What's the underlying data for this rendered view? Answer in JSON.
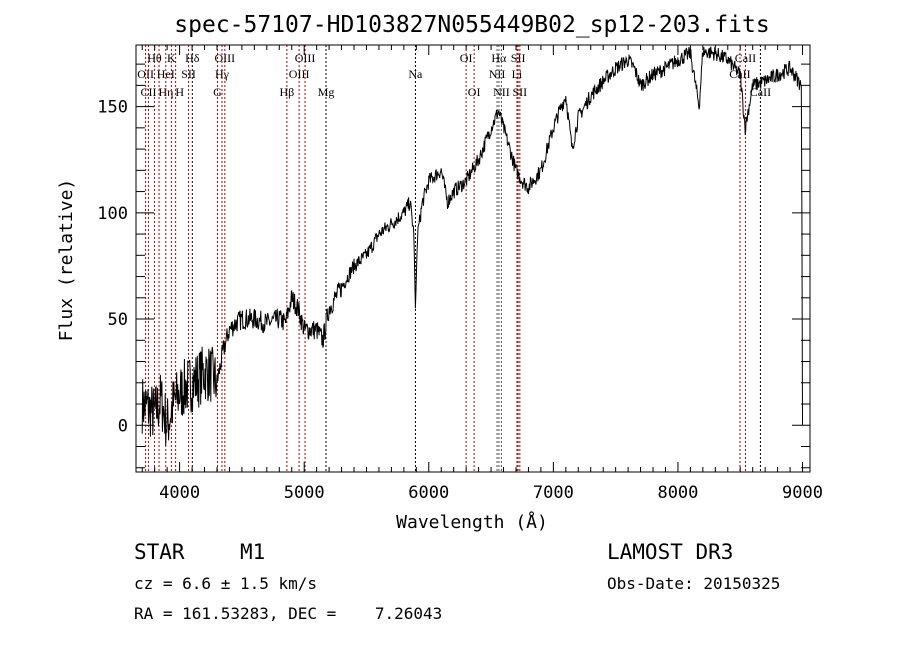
{
  "chart_data": {
    "type": "line",
    "title": "spec-57107-HD103827N055449B02_sp12-203.fits",
    "xlabel": "Wavelength (Å)",
    "ylabel": "Flux (relative)",
    "xlim": [
      3650,
      9060
    ],
    "ylim": [
      -22,
      179
    ],
    "xticks": [
      4000,
      5000,
      6000,
      7000,
      8000,
      9000
    ],
    "yticks": [
      0,
      50,
      100,
      150
    ],
    "grid": false,
    "series": [
      {
        "name": "spectrum",
        "x": [
          3700,
          3750,
          3800,
          3850,
          3900,
          3950,
          4000,
          4050,
          4100,
          4150,
          4200,
          4250,
          4300,
          4350,
          4400,
          4450,
          4500,
          4600,
          4700,
          4800,
          4850,
          4900,
          4950,
          5000,
          5100,
          5150,
          5200,
          5300,
          5400,
          5500,
          5600,
          5700,
          5800,
          5850,
          5880,
          5893,
          5910,
          5950,
          6000,
          6100,
          6150,
          6200,
          6300,
          6400,
          6500,
          6560,
          6600,
          6650,
          6700,
          6750,
          6800,
          6900,
          7000,
          7050,
          7100,
          7150,
          7200,
          7300,
          7400,
          7500,
          7600,
          7650,
          7700,
          7800,
          7900,
          8000,
          8100,
          8170,
          8200,
          8300,
          8400,
          8500,
          8540,
          8600,
          8700,
          8800,
          8900,
          8990,
          8995,
          9000
        ],
        "y": [
          10,
          8,
          5,
          12,
          0,
          10,
          15,
          18,
          20,
          22,
          25,
          24,
          20,
          35,
          45,
          48,
          50,
          50,
          48,
          50,
          48,
          60,
          55,
          45,
          45,
          40,
          55,
          65,
          75,
          80,
          90,
          95,
          100,
          105,
          90,
          55,
          90,
          105,
          115,
          120,
          105,
          110,
          115,
          125,
          140,
          148,
          140,
          130,
          120,
          115,
          112,
          120,
          140,
          148,
          155,
          130,
          145,
          155,
          162,
          168,
          172,
          168,
          160,
          165,
          168,
          172,
          175,
          150,
          176,
          175,
          172,
          165,
          140,
          160,
          162,
          165,
          168,
          160,
          100,
          0
        ]
      }
    ],
    "line_markers": [
      {
        "label": "OII",
        "wl": 3727,
        "row": 2,
        "color": "#b00000"
      },
      {
        "label": "Hθ",
        "wl": 3798,
        "row": 1,
        "color": "#b00000"
      },
      {
        "label": "CII",
        "wl": 3750,
        "row": 3,
        "color": "#b00000"
      },
      {
        "label": "Hη",
        "wl": 3835,
        "row": 3,
        "color": "#b00000"
      },
      {
        "label": "HeI",
        "wl": 3889,
        "row": 2,
        "color": "#b00000"
      },
      {
        "label": "K",
        "wl": 3934,
        "row": 1,
        "color": "#b00000"
      },
      {
        "label": "H",
        "wl": 3968,
        "row": 3,
        "color": "#b00000"
      },
      {
        "label": "SII",
        "wl": 4072,
        "row": 2,
        "color": "#b00000"
      },
      {
        "label": "Hδ",
        "wl": 4102,
        "row": 1,
        "color": "#000000"
      },
      {
        "label": "G",
        "wl": 4304,
        "row": 3,
        "color": "#b00000"
      },
      {
        "label": "Hγ",
        "wl": 4340,
        "row": 2,
        "color": "#b00000"
      },
      {
        "label": "OIII",
        "wl": 4363,
        "row": 1,
        "color": "#b00000"
      },
      {
        "label": "Hβ",
        "wl": 4861,
        "row": 3,
        "color": "#b00000"
      },
      {
        "label": "OIII",
        "wl": 4959,
        "row": 2,
        "color": "#b00000"
      },
      {
        "label": "OIII",
        "wl": 5007,
        "row": 1,
        "color": "#b00000"
      },
      {
        "label": "Mg",
        "wl": 5175,
        "row": 3,
        "color": "#000000"
      },
      {
        "label": "Na",
        "wl": 5893,
        "row": 2,
        "color": "#000000"
      },
      {
        "label": "OI",
        "wl": 6300,
        "row": 1,
        "color": "#b00000"
      },
      {
        "label": "OI",
        "wl": 6364,
        "row": 3,
        "color": "#b00000"
      },
      {
        "label": "NII",
        "wl": 6548,
        "row": 2,
        "color": "#555555"
      },
      {
        "label": "Hα",
        "wl": 6563,
        "row": 1,
        "color": "#555555"
      },
      {
        "label": "NII",
        "wl": 6583,
        "row": 3,
        "color": "#555555"
      },
      {
        "label": "Li",
        "wl": 6708,
        "row": 2,
        "color": "#b00000"
      },
      {
        "label": "SII",
        "wl": 6717,
        "row": 1,
        "color": "#b00000"
      },
      {
        "label": "SII",
        "wl": 6731,
        "row": 3,
        "color": "#b00000"
      },
      {
        "label": "CaII",
        "wl": 8498,
        "row": 2,
        "color": "#b00000"
      },
      {
        "label": "CaII",
        "wl": 8542,
        "row": 1,
        "color": "#b00000"
      },
      {
        "label": "CaII",
        "wl": 8662,
        "row": 3,
        "color": "#000000"
      }
    ]
  },
  "info": {
    "class": "STAR",
    "subclass": "M1",
    "survey": "LAMOST DR3",
    "cz": "cz = 6.6 ± 1.5 km/s",
    "obs_date": "Obs-Date: 20150325",
    "coords": "RA = 161.53283, DEC =    7.26043"
  }
}
